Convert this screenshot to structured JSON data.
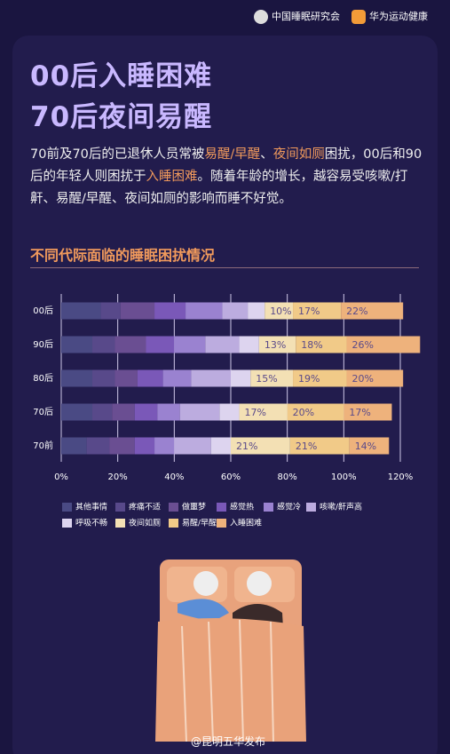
{
  "header": {
    "logo_left": "中国睡眠研究会",
    "logo_right": "华为运动健康"
  },
  "title_lines": [
    "00后入睡困难",
    "70后夜间易醒"
  ],
  "paragraph": [
    {
      "text": "70前及70后的已退休人员常被",
      "highlight": false
    },
    {
      "text": "易醒/早醒",
      "highlight": true
    },
    {
      "text": "、",
      "highlight": false
    },
    {
      "text": "夜间如厕",
      "highlight": true
    },
    {
      "text": "困扰，00后和90后的年轻人则困扰于",
      "highlight": false
    },
    {
      "text": "入睡困难",
      "highlight": true
    },
    {
      "text": "。随着年龄的增长，越容易受咳嗽/打鼾、易醒/早醒、夜间如厕的影响而睡不好觉。",
      "highlight": false
    }
  ],
  "watermark": "@昆明五华发布",
  "chart_data": {
    "type": "stacked_bar_horizontal",
    "title": "不同代际面临的睡眠困扰情况",
    "categories": [
      "00后",
      "90后",
      "80后",
      "70后",
      "70前"
    ],
    "series": [
      {
        "name": "其他事情",
        "color": "#4a4a84",
        "values": [
          14,
          11,
          11,
          11,
          9
        ]
      },
      {
        "name": "疼痛不适",
        "color": "#58498a",
        "values": [
          7,
          8,
          8,
          7,
          8
        ]
      },
      {
        "name": "做噩梦",
        "color": "#6a4e92",
        "values": [
          12,
          11,
          8,
          8,
          9
        ]
      },
      {
        "name": "感觉热",
        "color": "#7a58b8",
        "values": [
          11,
          10,
          9,
          8,
          7
        ]
      },
      {
        "name": "感觉冷",
        "color": "#9a82d0",
        "values": [
          13,
          11,
          10,
          8,
          7
        ]
      },
      {
        "name": "咳嗽/鼾声高",
        "color": "#bcacdf",
        "values": [
          9,
          12,
          14,
          14,
          13
        ]
      },
      {
        "name": "呼吸不畅",
        "color": "#ddd4ef",
        "values": [
          6,
          7,
          7,
          7,
          7
        ]
      },
      {
        "name": "夜间如厕",
        "color": "#f3e0b4",
        "values": [
          10,
          13,
          15,
          17,
          21
        ],
        "value_labels": [
          "10%",
          "13%",
          "15%",
          "17%",
          "21%"
        ]
      },
      {
        "name": "易醒/早醒",
        "color": "#f1ca88",
        "values": [
          17,
          18,
          19,
          20,
          21
        ],
        "value_labels": [
          "17%",
          "18%",
          "19%",
          "20%",
          "21%"
        ]
      },
      {
        "name": "入睡困难",
        "color": "#eeb27c",
        "values": [
          22,
          26,
          20,
          17,
          14
        ],
        "value_labels": [
          "22%",
          "26%",
          "20%",
          "17%",
          "14%"
        ]
      }
    ],
    "xlim": [
      0,
      120
    ],
    "xticks": [
      {
        "value": 0,
        "label": "0%"
      },
      {
        "value": 20,
        "label": "20%"
      },
      {
        "value": 40,
        "label": "40%"
      },
      {
        "value": 60,
        "label": "60%"
      },
      {
        "value": 80,
        "label": "80%"
      },
      {
        "value": 100,
        "label": "100%"
      },
      {
        "value": 120,
        "label": "120%"
      }
    ],
    "grid": true
  }
}
